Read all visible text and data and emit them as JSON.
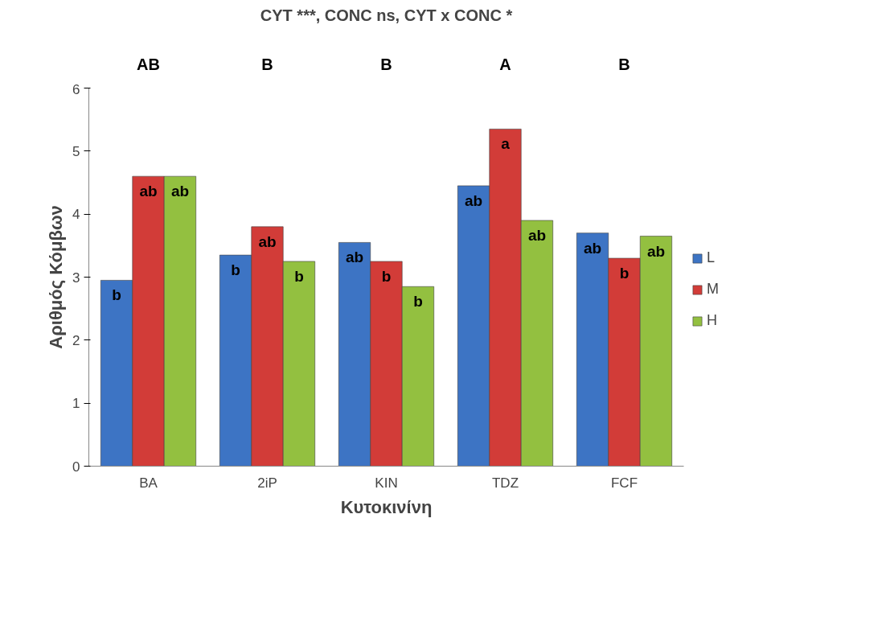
{
  "chart_data": {
    "type": "bar",
    "title": "CYT ***, CONC ns, CYT x CONC *",
    "xlabel": "Κυτοκινίνη",
    "ylabel": "Αριθμός Κόμβων",
    "categories": [
      "BA",
      "2iP",
      "KIN",
      "TDZ",
      "FCF"
    ],
    "series": [
      {
        "name": "L",
        "color": "#3d74c4",
        "values": [
          2.95,
          3.35,
          3.55,
          4.45,
          3.7
        ],
        "value_labels": [
          "b",
          "b",
          "ab",
          "ab",
          "ab"
        ]
      },
      {
        "name": "M",
        "color": "#d23c38",
        "values": [
          4.6,
          3.8,
          3.25,
          5.35,
          3.3
        ],
        "value_labels": [
          "ab",
          "ab",
          "b",
          "a",
          "b"
        ]
      },
      {
        "name": "H",
        "color": "#93c040",
        "values": [
          4.6,
          3.25,
          2.85,
          3.9,
          3.65
        ],
        "value_labels": [
          "ab",
          "b",
          "b",
          "ab",
          "ab"
        ]
      }
    ],
    "annotations": [
      "AB",
      "B",
      "B",
      "A",
      "B"
    ],
    "ylim": [
      0,
      6
    ],
    "yticks": [
      0,
      1,
      2,
      3,
      4,
      5,
      6
    ],
    "grid": false,
    "legend": "right"
  }
}
